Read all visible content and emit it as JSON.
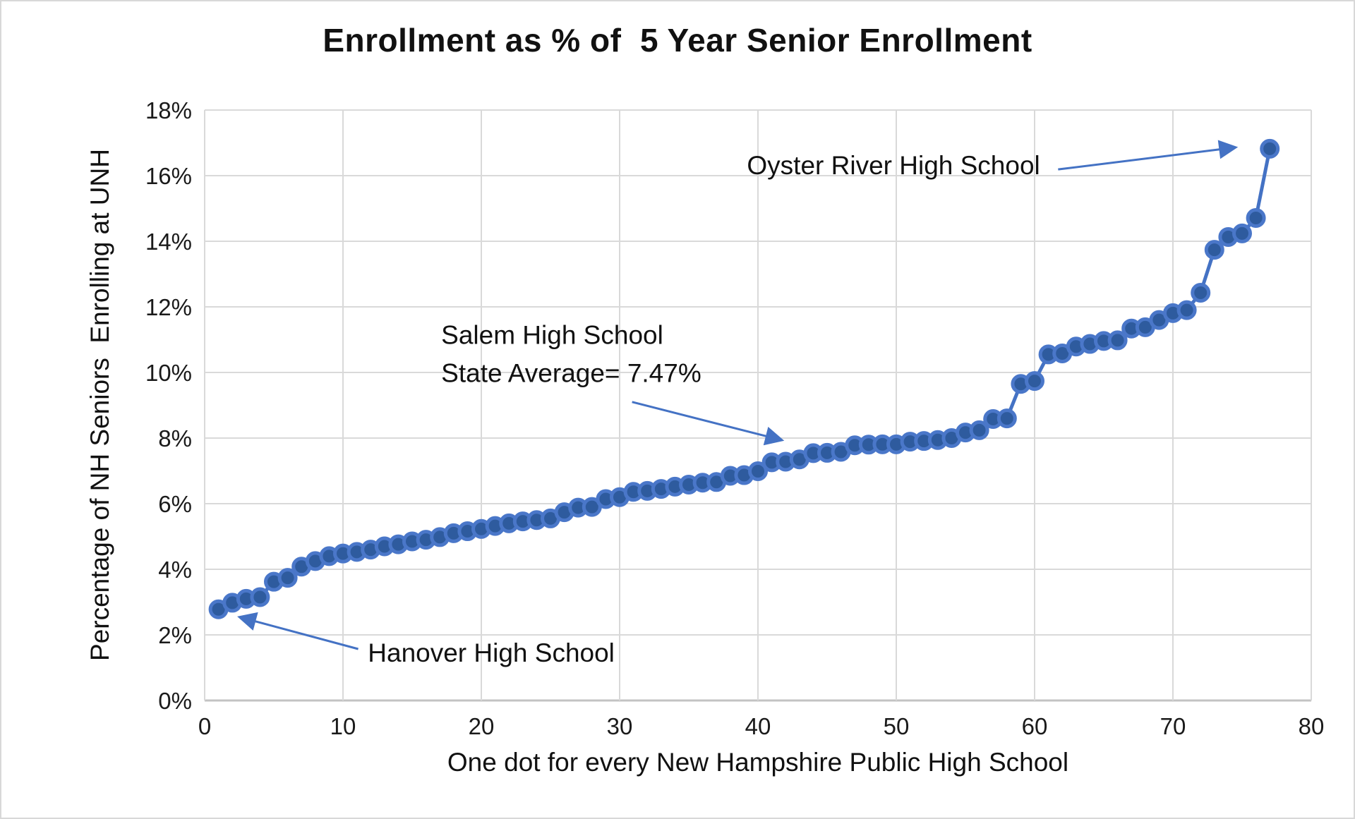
{
  "chart_data": {
    "type": "line",
    "title": "Enrollment as % of  5 Year Senior Enrollment",
    "xlabel": "One dot for every New Hampshire Public High School",
    "ylabel": "Percentage of NH Seniors  Enrolling at UNH",
    "xlim": [
      0,
      80
    ],
    "ylim": [
      0,
      18
    ],
    "grid": true,
    "legend": "none",
    "state_average_pct": 7.47,
    "x_ticks": [
      {
        "v": 0,
        "label": "0"
      },
      {
        "v": 10,
        "label": "10"
      },
      {
        "v": 20,
        "label": "20"
      },
      {
        "v": 30,
        "label": "30"
      },
      {
        "v": 40,
        "label": "40"
      },
      {
        "v": 50,
        "label": "50"
      },
      {
        "v": 60,
        "label": "60"
      },
      {
        "v": 70,
        "label": "70"
      },
      {
        "v": 80,
        "label": "80"
      }
    ],
    "y_ticks": [
      {
        "v": 0,
        "label": "0%"
      },
      {
        "v": 2,
        "label": "2%"
      },
      {
        "v": 4,
        "label": "4%"
      },
      {
        "v": 6,
        "label": "6%"
      },
      {
        "v": 8,
        "label": "8%"
      },
      {
        "v": 10,
        "label": "10%"
      },
      {
        "v": 12,
        "label": "12%"
      },
      {
        "v": 14,
        "label": "14%"
      },
      {
        "v": 16,
        "label": "16%"
      },
      {
        "v": 18,
        "label": "18%"
      }
    ],
    "x": [
      1,
      2,
      3,
      4,
      5,
      6,
      7,
      8,
      9,
      10,
      11,
      12,
      13,
      14,
      15,
      16,
      17,
      18,
      19,
      20,
      21,
      22,
      23,
      24,
      25,
      26,
      27,
      28,
      29,
      30,
      31,
      32,
      33,
      34,
      35,
      36,
      37,
      38,
      39,
      40,
      41,
      42,
      43,
      44,
      45,
      46,
      47,
      48,
      49,
      50,
      51,
      52,
      53,
      54,
      55,
      56,
      57,
      58,
      59,
      60,
      61,
      62,
      63,
      64,
      65,
      66,
      67,
      68,
      69,
      70,
      71,
      72,
      73,
      74,
      75,
      76,
      77
    ],
    "values": [
      2.78,
      2.98,
      3.1,
      3.15,
      3.62,
      3.74,
      4.08,
      4.25,
      4.4,
      4.48,
      4.53,
      4.6,
      4.7,
      4.76,
      4.85,
      4.9,
      4.98,
      5.1,
      5.16,
      5.23,
      5.32,
      5.4,
      5.46,
      5.5,
      5.55,
      5.74,
      5.88,
      5.9,
      6.14,
      6.2,
      6.36,
      6.39,
      6.45,
      6.52,
      6.58,
      6.64,
      6.66,
      6.85,
      6.87,
      6.99,
      7.26,
      7.28,
      7.35,
      7.54,
      7.55,
      7.58,
      7.78,
      7.8,
      7.81,
      7.81,
      7.89,
      7.91,
      7.94,
      8.0,
      8.17,
      8.24,
      8.58,
      8.6,
      9.65,
      9.74,
      10.55,
      10.58,
      10.79,
      10.87,
      10.96,
      10.98,
      11.34,
      11.38,
      11.6,
      11.81,
      11.9,
      12.43,
      13.74,
      14.13,
      14.24,
      14.71,
      16.82
    ],
    "annotations": [
      {
        "text": "Oyster River High School",
        "align": "right",
        "x": 60.6,
        "y": 16.3,
        "arrow": {
          "from": [
            61.7,
            16.19
          ],
          "to": [
            74.5,
            16.86
          ]
        }
      },
      {
        "text": "Salem High School\nState Average= 7.47%",
        "align": "left",
        "x": 17.1,
        "y": 10.56,
        "arrow": {
          "from": [
            30.9,
            9.1
          ],
          "to": [
            41.7,
            7.94
          ]
        }
      },
      {
        "text": "Hanover High School",
        "align": "left",
        "x": 11.8,
        "y": 1.44,
        "arrow": {
          "from": [
            11.1,
            1.57
          ],
          "to": [
            2.55,
            2.54
          ]
        }
      }
    ],
    "colors": {
      "line": "#4472c4",
      "marker_fill": "#2e5b9e",
      "marker_ring": "#4a77c9",
      "grid": "#d9d9d9",
      "axis": "#c3c3c3",
      "arrow": "#4472c4",
      "text": "#111111",
      "background": "#ffffff"
    }
  }
}
